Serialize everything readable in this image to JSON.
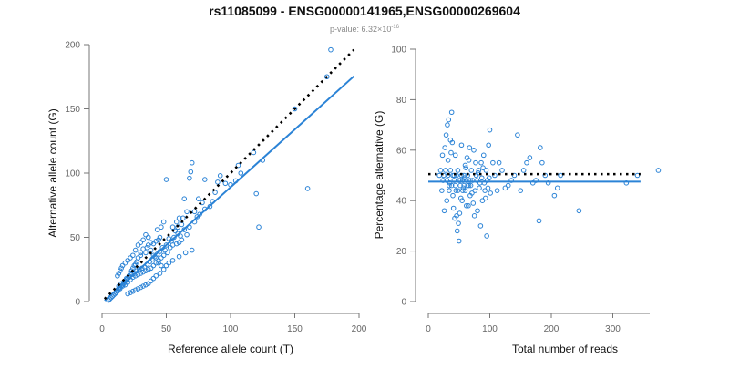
{
  "chart_data": {
    "type": "scatter",
    "title": "rs11085099 - ENSG00000141965,ENSG00000269604",
    "subtitle": {
      "prefix": "p-value: 6.32",
      "times": "×",
      "base": "10",
      "exponent": "-16"
    },
    "colors": {
      "points": "#2b83d6",
      "fit": "#2b83d6",
      "reference": "#000000",
      "axis": "#777777"
    },
    "panels": [
      {
        "id": "left",
        "xlabel": "Reference allele count (T)",
        "ylabel": "Alternative allele count (G)",
        "xlim": [
          0,
          200
        ],
        "ylim": [
          0,
          200
        ],
        "xticks": [
          0,
          50,
          100,
          150,
          200
        ],
        "yticks": [
          0,
          50,
          100,
          150,
          200
        ],
        "reference_line": {
          "style": "dotted",
          "slope": 1,
          "intercept": 0,
          "x": [
            2,
            196
          ]
        },
        "fit_line": {
          "slope": 0.9,
          "intercept": -1,
          "x": [
            2,
            196
          ]
        },
        "points": [
          [
            178,
            196
          ],
          [
            175,
            175
          ],
          [
            160,
            88
          ],
          [
            150,
            150
          ],
          [
            125,
            110
          ],
          [
            122,
            58
          ],
          [
            120,
            84
          ],
          [
            118,
            116
          ],
          [
            108,
            100
          ],
          [
            106,
            106
          ],
          [
            104,
            94
          ],
          [
            100,
            91
          ],
          [
            96,
            92
          ],
          [
            92,
            98
          ],
          [
            90,
            93
          ],
          [
            88,
            85
          ],
          [
            80,
            95
          ],
          [
            78,
            77
          ],
          [
            75,
            80
          ],
          [
            72,
            70
          ],
          [
            70,
            108
          ],
          [
            69,
            101
          ],
          [
            68,
            96
          ],
          [
            66,
            70
          ],
          [
            64,
            80
          ],
          [
            63,
            65
          ],
          [
            60,
            65
          ],
          [
            59,
            58
          ],
          [
            58,
            62
          ],
          [
            57,
            55
          ],
          [
            55,
            58
          ],
          [
            50,
            95
          ],
          [
            48,
            62
          ],
          [
            46,
            58
          ],
          [
            45,
            50
          ],
          [
            44,
            48
          ],
          [
            43,
            56
          ],
          [
            42,
            47
          ],
          [
            40,
            45
          ],
          [
            38,
            46
          ],
          [
            36,
            50
          ],
          [
            35,
            42
          ],
          [
            34,
            38
          ],
          [
            32,
            41
          ],
          [
            30,
            38
          ],
          [
            30,
            36
          ],
          [
            28,
            34
          ],
          [
            27,
            31
          ],
          [
            26,
            29
          ],
          [
            25,
            28
          ],
          [
            24,
            26
          ],
          [
            23,
            24
          ],
          [
            22,
            22
          ],
          [
            21,
            20
          ],
          [
            20,
            18
          ],
          [
            19,
            17
          ],
          [
            18,
            16
          ],
          [
            17,
            14
          ],
          [
            16,
            13
          ],
          [
            15,
            12
          ],
          [
            14,
            11
          ],
          [
            13,
            10
          ],
          [
            12,
            8
          ],
          [
            11,
            7
          ],
          [
            10,
            6
          ],
          [
            9,
            5
          ],
          [
            8,
            4
          ],
          [
            7,
            3
          ],
          [
            6,
            2
          ],
          [
            5,
            1
          ],
          [
            62,
            48
          ],
          [
            61,
            51
          ],
          [
            60,
            46
          ],
          [
            59,
            53
          ],
          [
            58,
            45
          ],
          [
            56,
            50
          ],
          [
            55,
            44
          ],
          [
            54,
            47
          ],
          [
            53,
            42
          ],
          [
            52,
            49
          ],
          [
            51,
            38
          ],
          [
            50,
            44
          ],
          [
            49,
            40
          ],
          [
            48,
            36
          ],
          [
            47,
            42
          ],
          [
            46,
            34
          ],
          [
            45,
            39
          ],
          [
            44,
            32
          ],
          [
            43,
            37
          ],
          [
            42,
            30
          ],
          [
            41,
            35
          ],
          [
            40,
            28
          ],
          [
            39,
            33
          ],
          [
            38,
            26
          ],
          [
            37,
            31
          ],
          [
            36,
            25
          ],
          [
            35,
            29
          ],
          [
            34,
            24
          ],
          [
            33,
            27
          ],
          [
            32,
            23
          ],
          [
            31,
            26
          ],
          [
            30,
            22
          ],
          [
            29,
            25
          ],
          [
            28,
            21
          ],
          [
            27,
            24
          ],
          [
            26,
            20
          ],
          [
            25,
            22
          ],
          [
            24,
            19
          ],
          [
            23,
            21
          ],
          [
            22,
            17
          ],
          [
            21,
            19
          ],
          [
            20,
            15
          ],
          [
            19,
            18
          ],
          [
            18,
            13
          ],
          [
            17,
            15
          ],
          [
            16,
            12
          ],
          [
            15,
            14
          ],
          [
            14,
            10
          ],
          [
            13,
            12
          ],
          [
            12,
            9
          ],
          [
            70,
            40
          ],
          [
            65,
            38
          ],
          [
            60,
            35
          ],
          [
            55,
            32
          ],
          [
            52,
            30
          ],
          [
            50,
            28
          ],
          [
            48,
            25
          ],
          [
            45,
            22
          ],
          [
            42,
            20
          ],
          [
            40,
            18
          ],
          [
            38,
            16
          ],
          [
            36,
            14
          ],
          [
            34,
            13
          ],
          [
            32,
            12
          ],
          [
            30,
            11
          ],
          [
            28,
            10
          ],
          [
            26,
            9
          ],
          [
            24,
            8
          ],
          [
            22,
            7
          ],
          [
            20,
            6
          ],
          [
            18,
            30
          ],
          [
            16,
            28
          ],
          [
            15,
            26
          ],
          [
            14,
            24
          ],
          [
            13,
            22
          ],
          [
            12,
            20
          ],
          [
            20,
            32
          ],
          [
            22,
            34
          ],
          [
            24,
            36
          ],
          [
            26,
            40
          ],
          [
            28,
            44
          ],
          [
            30,
            46
          ],
          [
            32,
            48
          ],
          [
            34,
            52
          ],
          [
            36,
            44
          ],
          [
            38,
            40
          ],
          [
            40,
            36
          ],
          [
            42,
            34
          ],
          [
            44,
            30
          ],
          [
            46,
            28
          ],
          [
            66,
            52
          ],
          [
            64,
            56
          ],
          [
            62,
            60
          ],
          [
            68,
            58
          ],
          [
            72,
            62
          ],
          [
            74,
            66
          ],
          [
            76,
            68
          ],
          [
            80,
            72
          ],
          [
            84,
            74
          ],
          [
            86,
            78
          ]
        ]
      },
      {
        "id": "right",
        "xlabel": "Total number of reads",
        "ylabel": "Percentage alternative (G)",
        "xlim": [
          0,
          360
        ],
        "ylim": [
          0,
          100
        ],
        "xticks": [
          0,
          100,
          200,
          300
        ],
        "yticks": [
          0,
          20,
          40,
          60,
          80,
          100
        ],
        "reference_line": {
          "style": "dotted",
          "y": 50.5,
          "x": [
            0,
            345
          ]
        },
        "fit_line": {
          "y": 47.5,
          "x": [
            0,
            345
          ]
        },
        "points": [
          [
            374,
            52
          ],
          [
            340,
            50
          ],
          [
            322,
            47
          ],
          [
            245,
            36
          ],
          [
            215,
            50
          ],
          [
            210,
            45
          ],
          [
            205,
            42
          ],
          [
            195,
            47
          ],
          [
            190,
            50
          ],
          [
            185,
            55
          ],
          [
            182,
            61
          ],
          [
            180,
            32
          ],
          [
            175,
            48
          ],
          [
            170,
            47
          ],
          [
            165,
            57
          ],
          [
            160,
            55
          ],
          [
            155,
            52
          ],
          [
            150,
            44
          ],
          [
            145,
            66
          ],
          [
            140,
            50
          ],
          [
            135,
            48
          ],
          [
            130,
            46
          ],
          [
            125,
            45
          ],
          [
            120,
            52
          ],
          [
            115,
            55
          ],
          [
            112,
            44
          ],
          [
            108,
            50
          ],
          [
            105,
            55
          ],
          [
            100,
            68
          ],
          [
            98,
            62
          ],
          [
            96,
            48
          ],
          [
            94,
            52
          ],
          [
            92,
            44
          ],
          [
            90,
            58
          ],
          [
            88,
            40
          ],
          [
            86,
            55
          ],
          [
            84,
            47
          ],
          [
            82,
            52
          ],
          [
            80,
            36
          ],
          [
            78,
            50
          ],
          [
            76,
            44
          ],
          [
            74,
            60
          ],
          [
            72,
            48
          ],
          [
            70,
            52
          ],
          [
            68,
            42
          ],
          [
            66,
            56
          ],
          [
            64,
            46
          ],
          [
            62,
            38
          ],
          [
            60,
            54
          ],
          [
            58,
            50
          ],
          [
            56,
            44
          ],
          [
            54,
            62
          ],
          [
            52,
            48
          ],
          [
            50,
            24
          ],
          [
            48,
            52
          ],
          [
            46,
            34
          ],
          [
            44,
            58
          ],
          [
            42,
            50
          ],
          [
            40,
            42
          ],
          [
            38,
            75
          ],
          [
            36,
            64
          ],
          [
            34,
            46
          ],
          [
            32,
            56
          ],
          [
            30,
            40
          ],
          [
            28,
            52
          ],
          [
            26,
            36
          ],
          [
            24,
            48
          ],
          [
            22,
            44
          ],
          [
            20,
            52
          ],
          [
            18,
            50
          ],
          [
            95,
            26
          ],
          [
            85,
            30
          ],
          [
            75,
            34
          ],
          [
            65,
            38
          ],
          [
            55,
            40
          ],
          [
            45,
            44
          ],
          [
            35,
            47
          ],
          [
            25,
            50
          ],
          [
            23,
            58
          ],
          [
            27,
            61
          ],
          [
            29,
            66
          ],
          [
            31,
            70
          ],
          [
            33,
            72
          ],
          [
            37,
            59
          ],
          [
            39,
            63
          ],
          [
            41,
            37
          ],
          [
            43,
            33
          ],
          [
            47,
            28
          ],
          [
            49,
            31
          ],
          [
            51,
            35
          ],
          [
            53,
            41
          ],
          [
            57,
            45
          ],
          [
            59,
            49
          ],
          [
            61,
            53
          ],
          [
            63,
            57
          ],
          [
            67,
            61
          ],
          [
            69,
            46
          ],
          [
            71,
            43
          ],
          [
            73,
            39
          ],
          [
            77,
            55
          ],
          [
            79,
            48
          ],
          [
            81,
            51
          ],
          [
            83,
            45
          ],
          [
            87,
            49
          ],
          [
            89,
            53
          ],
          [
            91,
            47
          ],
          [
            93,
            41
          ],
          [
            97,
            45
          ],
          [
            99,
            49
          ],
          [
            101,
            43
          ],
          [
            30,
            48
          ],
          [
            32,
            50
          ],
          [
            34,
            44
          ],
          [
            36,
            52
          ],
          [
            38,
            46
          ],
          [
            40,
            50
          ],
          [
            42,
            48
          ],
          [
            44,
            46
          ],
          [
            46,
            50
          ],
          [
            48,
            44
          ],
          [
            50,
            48
          ],
          [
            52,
            46
          ],
          [
            54,
            50
          ],
          [
            56,
            48
          ],
          [
            58,
            46
          ],
          [
            60,
            44
          ],
          [
            62,
            48
          ],
          [
            64,
            50
          ],
          [
            66,
            46
          ],
          [
            68,
            48
          ]
        ]
      }
    ]
  }
}
